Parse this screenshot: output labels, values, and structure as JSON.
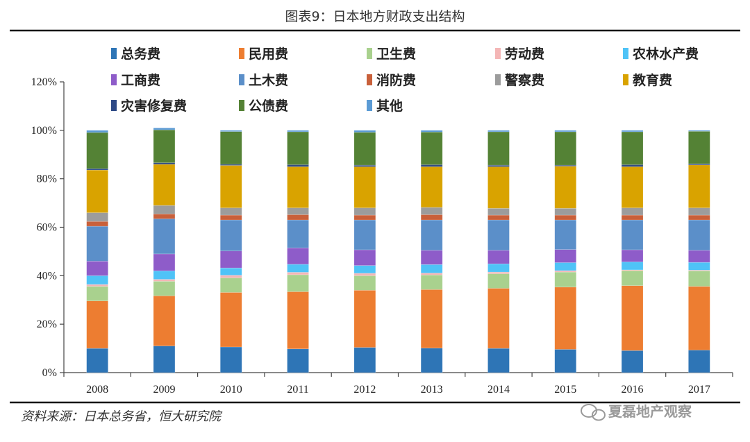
{
  "colors": {
    "series": [
      "#2e75b6",
      "#ed7d31",
      "#a9d18e",
      "#f4b6b6",
      "#4fc3f7",
      "#8e5cc9",
      "#5b8fc9",
      "#c9603a",
      "#9c9c9c",
      "#d9a300",
      "#2e4a86",
      "#548235",
      "#5b9bd5"
    ]
  },
  "chart_data": {
    "type": "bar",
    "stacked": true,
    "title": "图表9：日本地方财政支出结构",
    "source": "资料来源：日本总务省，恒大研究院",
    "watermark": "夏磊地产观察",
    "categories": [
      "2008",
      "2009",
      "2010",
      "2011",
      "2012",
      "2013",
      "2014",
      "2015",
      "2016",
      "2017"
    ],
    "ylim": [
      0,
      120
    ],
    "yticks": [
      "0%",
      "20%",
      "40%",
      "60%",
      "80%",
      "100%",
      "120%"
    ],
    "legend_position": "top",
    "grid": false,
    "series": [
      {
        "name": "总务费",
        "values": [
          10.0,
          11.0,
          10.6,
          9.8,
          10.4,
          10.1,
          10.0,
          9.6,
          9.1,
          9.3
        ]
      },
      {
        "name": "民用费",
        "values": [
          19.6,
          20.7,
          22.5,
          23.6,
          23.6,
          24.2,
          24.8,
          25.7,
          26.8,
          26.3
        ]
      },
      {
        "name": "卫生费",
        "values": [
          6.0,
          6.0,
          6.0,
          7.0,
          6.0,
          6.0,
          6.0,
          6.2,
          6.2,
          6.4
        ]
      },
      {
        "name": "劳动费",
        "values": [
          0.8,
          0.8,
          1.1,
          1.0,
          1.0,
          0.8,
          0.7,
          0.6,
          0.3,
          0.3
        ]
      },
      {
        "name": "农林水产费",
        "values": [
          3.6,
          3.5,
          3.0,
          3.3,
          3.2,
          3.5,
          3.4,
          3.3,
          3.3,
          3.2
        ]
      },
      {
        "name": "工商费",
        "values": [
          6.0,
          7.0,
          7.0,
          6.8,
          6.5,
          5.9,
          5.6,
          5.4,
          5.0,
          5.0
        ]
      },
      {
        "name": "土木费",
        "values": [
          14.4,
          14.5,
          12.8,
          11.5,
          12.3,
          12.5,
          12.5,
          12.2,
          12.3,
          12.5
        ]
      },
      {
        "name": "消防费",
        "values": [
          2.0,
          2.0,
          2.0,
          2.2,
          2.0,
          2.2,
          2.0,
          2.0,
          2.0,
          2.0
        ]
      },
      {
        "name": "警察费",
        "values": [
          3.6,
          3.5,
          3.0,
          2.8,
          3.0,
          3.0,
          2.8,
          2.8,
          3.0,
          3.0
        ]
      },
      {
        "name": "教育费",
        "values": [
          17.6,
          17.0,
          17.5,
          17.0,
          17.0,
          16.8,
          17.2,
          17.4,
          17.0,
          17.7
        ]
      },
      {
        "name": "灾害修复费",
        "values": [
          0.6,
          0.6,
          0.5,
          0.8,
          0.6,
          0.8,
          0.6,
          0.4,
          0.8,
          0.5
        ]
      },
      {
        "name": "公债费",
        "values": [
          14.9,
          13.6,
          13.5,
          13.6,
          13.6,
          13.5,
          13.8,
          13.8,
          13.6,
          13.4
        ]
      },
      {
        "name": "其他",
        "values": [
          0.9,
          0.8,
          0.5,
          0.6,
          0.8,
          0.7,
          0.6,
          0.6,
          0.6,
          0.4
        ]
      }
    ]
  }
}
